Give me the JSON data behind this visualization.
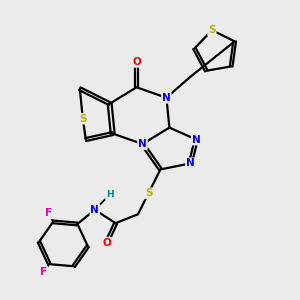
{
  "background_color": "#ebebeb",
  "bond_color": "#000000",
  "atom_colors": {
    "S": "#b8b000",
    "N": "#0000ee",
    "O": "#ee0000",
    "F": "#ee00aa",
    "H": "#008888",
    "C": "#000000"
  },
  "figsize": [
    3.0,
    3.0
  ],
  "dpi": 100
}
